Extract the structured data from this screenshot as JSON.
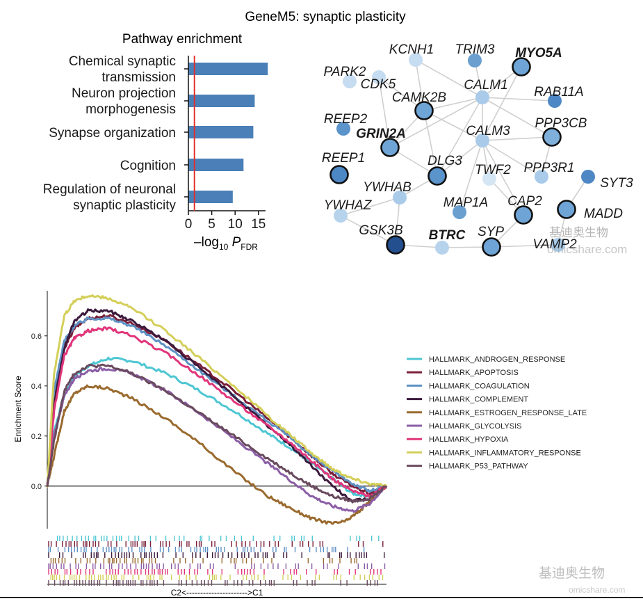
{
  "figure": {
    "title": "GeneM5: synaptic plasticity",
    "watermark_lines": [
      "基迪奥生物",
      "omicshare.com"
    ]
  },
  "chart_data": [
    {
      "type": "bar",
      "orientation": "horizontal",
      "title": "Pathway enrichment",
      "xlabel": "–log10 PFDR",
      "xlabel_parts": {
        "prefix": "–log",
        "sub1": "10",
        "var": " P",
        "sub2": "FDR"
      },
      "categories": [
        "Chemical synaptic\ntransmission",
        "Neuron projection\nmorphogenesis",
        "Synapse organization",
        "Cognition",
        "Regulation of neuronal\nsynaptic plasticity"
      ],
      "values": [
        17.0,
        14.2,
        13.9,
        11.8,
        9.5
      ],
      "xticks": [
        0,
        5,
        10,
        15
      ],
      "xlim": [
        0,
        18
      ],
      "threshold": 1.3,
      "bar_color": "#4a7fb8",
      "threshold_color": "#e0302a"
    },
    {
      "type": "network",
      "nodes": [
        {
          "id": "KCNH1",
          "bold": false,
          "ring": false,
          "color": "#c6dcf0"
        },
        {
          "id": "TRIM3",
          "bold": false,
          "ring": false,
          "color": "#6a9fd0"
        },
        {
          "id": "MYO5A",
          "bold": true,
          "ring": true,
          "color": "#6fa5d6"
        },
        {
          "id": "PARK2",
          "bold": false,
          "ring": false,
          "color": "#c6dcf0"
        },
        {
          "id": "CDK5",
          "bold": false,
          "ring": false,
          "color": "#c6dcf0"
        },
        {
          "id": "CALM1",
          "bold": false,
          "ring": false,
          "color": "#a9cbe9"
        },
        {
          "id": "CAMK2B",
          "bold": false,
          "ring": true,
          "color": "#6fa5d6"
        },
        {
          "id": "RAB11A",
          "bold": false,
          "ring": false,
          "color": "#4d87c4"
        },
        {
          "id": "REEP2",
          "bold": false,
          "ring": false,
          "color": "#5b93cb"
        },
        {
          "id": "GRIN2A",
          "bold": true,
          "ring": true,
          "color": "#6fa5d6"
        },
        {
          "id": "CALM3",
          "bold": false,
          "ring": false,
          "color": "#a9cbe9"
        },
        {
          "id": "PPP3CB",
          "bold": false,
          "ring": true,
          "color": "#7fb0dc"
        },
        {
          "id": "REEP1",
          "bold": false,
          "ring": true,
          "color": "#4d87c4"
        },
        {
          "id": "DLG3",
          "bold": false,
          "ring": true,
          "color": "#5b93cb"
        },
        {
          "id": "TWF2",
          "bold": false,
          "ring": false,
          "color": "#d4e5f4"
        },
        {
          "id": "PPP3R1",
          "bold": false,
          "ring": false,
          "color": "#a9cbe9"
        },
        {
          "id": "SYT3",
          "bold": false,
          "ring": false,
          "color": "#4d87c4"
        },
        {
          "id": "YWHAB",
          "bold": false,
          "ring": false,
          "color": "#a9cbe9"
        },
        {
          "id": "MAP1A",
          "bold": false,
          "ring": false,
          "color": "#6a9fd0"
        },
        {
          "id": "CAP2",
          "bold": false,
          "ring": true,
          "color": "#6fa5d6"
        },
        {
          "id": "MADD",
          "bold": false,
          "ring": true,
          "color": "#6fa5d6"
        },
        {
          "id": "YWHAZ",
          "bold": false,
          "ring": false,
          "color": "#b7d3ec"
        },
        {
          "id": "GSK3B",
          "bold": false,
          "ring": true,
          "color": "#234f8f"
        },
        {
          "id": "BTRC",
          "bold": true,
          "ring": false,
          "color": "#b7d3ec"
        },
        {
          "id": "SYP",
          "bold": false,
          "ring": true,
          "color": "#6fa5d6"
        },
        {
          "id": "VAMP2",
          "bold": false,
          "ring": false,
          "color": "#a9cbe9"
        }
      ],
      "edges": [
        [
          "KCNH1",
          "CALM1"
        ],
        [
          "KCNH1",
          "CAMK2B"
        ],
        [
          "TRIM3",
          "CALM1"
        ],
        [
          "MYO5A",
          "CALM1"
        ],
        [
          "MYO5A",
          "CALM3"
        ],
        [
          "CALM1",
          "CALM3"
        ],
        [
          "CALM1",
          "CAMK2B"
        ],
        [
          "CALM1",
          "PPP3CB"
        ],
        [
          "CALM1",
          "RAB11A"
        ],
        [
          "CALM1",
          "DLG3"
        ],
        [
          "CALM3",
          "CAMK2B"
        ],
        [
          "CALM3",
          "PPP3CB"
        ],
        [
          "CALM3",
          "PPP3R1"
        ],
        [
          "CALM3",
          "DLG3"
        ],
        [
          "CALM3",
          "TWF2"
        ],
        [
          "CALM3",
          "CAP2"
        ],
        [
          "CAMK2B",
          "GRIN2A"
        ],
        [
          "CAMK2B",
          "DLG3"
        ],
        [
          "CDK5",
          "CAMK2B"
        ],
        [
          "CDK5",
          "GRIN2A"
        ],
        [
          "GRIN2A",
          "DLG3"
        ],
        [
          "DLG3",
          "YWHAB"
        ],
        [
          "YWHAB",
          "YWHAZ"
        ],
        [
          "YWHAZ",
          "GSK3B"
        ],
        [
          "GSK3B",
          "BTRC"
        ],
        [
          "BTRC",
          "SYP"
        ],
        [
          "SYP",
          "CAP2"
        ],
        [
          "SYP",
          "VAMP2"
        ],
        [
          "VAMP2",
          "MADD"
        ],
        [
          "MADD",
          "SYT3"
        ],
        [
          "CAP2",
          "TWF2"
        ],
        [
          "PPP3CB",
          "PPP3R1"
        ],
        [
          "MAP1A",
          "CALM3"
        ],
        [
          "YWHAB",
          "GSK3B"
        ],
        [
          "CALM1",
          "GRIN2A"
        ]
      ]
    },
    {
      "type": "line",
      "ylabel": "Enrichment Score",
      "xlabel": "C2<---------------------->C1",
      "ylim": [
        -0.17,
        0.78
      ],
      "yticks": [
        0.0,
        0.2,
        0.4,
        0.6
      ],
      "ytick_labels": [
        "0.0",
        "0.2",
        "0.4",
        "0.6"
      ],
      "x_range": [
        0,
        1
      ],
      "legend_position": "right",
      "series": [
        {
          "name": "HALLMARK_ANDROGEN_RESPONSE",
          "color": "#4ec6d3",
          "x": [
            0,
            0.02,
            0.05,
            0.08,
            0.12,
            0.18,
            0.25,
            0.35,
            0.45,
            0.55,
            0.65,
            0.72,
            0.78,
            0.84,
            0.9,
            0.95,
            1.0
          ],
          "y": [
            0.0,
            0.22,
            0.36,
            0.44,
            0.48,
            0.51,
            0.5,
            0.45,
            0.38,
            0.3,
            0.21,
            0.15,
            0.09,
            0.03,
            -0.03,
            -0.04,
            0.0
          ]
        },
        {
          "name": "HALLMARK_APOPTOSIS",
          "color": "#7a1f3a",
          "x": [
            0,
            0.02,
            0.05,
            0.08,
            0.12,
            0.18,
            0.25,
            0.35,
            0.45,
            0.55,
            0.65,
            0.72,
            0.78,
            0.84,
            0.9,
            0.95,
            1.0
          ],
          "y": [
            0.0,
            0.34,
            0.55,
            0.63,
            0.67,
            0.68,
            0.65,
            0.58,
            0.48,
            0.38,
            0.27,
            0.19,
            0.12,
            0.05,
            0.0,
            -0.03,
            0.0
          ]
        },
        {
          "name": "HALLMARK_COAGULATION",
          "color": "#5e92c4",
          "x": [
            0,
            0.02,
            0.05,
            0.08,
            0.12,
            0.18,
            0.25,
            0.35,
            0.45,
            0.55,
            0.65,
            0.72,
            0.78,
            0.84,
            0.9,
            0.95,
            1.0
          ],
          "y": [
            0.0,
            0.38,
            0.58,
            0.64,
            0.67,
            0.67,
            0.64,
            0.56,
            0.46,
            0.36,
            0.26,
            0.19,
            0.12,
            0.06,
            0.01,
            -0.02,
            0.0
          ]
        },
        {
          "name": "HALLMARK_COMPLEMENT",
          "color": "#3c1a3c",
          "x": [
            0,
            0.02,
            0.05,
            0.08,
            0.12,
            0.18,
            0.25,
            0.35,
            0.45,
            0.55,
            0.65,
            0.72,
            0.78,
            0.84,
            0.9,
            0.95,
            1.0
          ],
          "y": [
            0.0,
            0.32,
            0.55,
            0.66,
            0.7,
            0.7,
            0.66,
            0.58,
            0.47,
            0.36,
            0.24,
            0.16,
            0.08,
            0.0,
            -0.06,
            -0.05,
            0.0
          ]
        },
        {
          "name": "HALLMARK_ESTROGEN_RESPONSE_LATE",
          "color": "#9a6a2e",
          "x": [
            0,
            0.02,
            0.05,
            0.08,
            0.12,
            0.18,
            0.25,
            0.35,
            0.45,
            0.55,
            0.65,
            0.72,
            0.78,
            0.84,
            0.88,
            0.92,
            0.96,
            1.0
          ],
          "y": [
            0.0,
            0.12,
            0.3,
            0.37,
            0.4,
            0.39,
            0.35,
            0.27,
            0.17,
            0.06,
            -0.04,
            -0.09,
            -0.13,
            -0.15,
            -0.14,
            -0.1,
            -0.05,
            0.0
          ]
        },
        {
          "name": "HALLMARK_GLYCOLYSIS",
          "color": "#8b5ea6",
          "x": [
            0,
            0.02,
            0.05,
            0.08,
            0.12,
            0.18,
            0.25,
            0.35,
            0.45,
            0.55,
            0.65,
            0.72,
            0.78,
            0.84,
            0.9,
            0.95,
            1.0
          ],
          "y": [
            0.0,
            0.2,
            0.36,
            0.43,
            0.46,
            0.47,
            0.45,
            0.38,
            0.29,
            0.19,
            0.09,
            0.02,
            -0.04,
            -0.08,
            -0.1,
            -0.07,
            0.0
          ]
        },
        {
          "name": "HALLMARK_HYPOXIA",
          "color": "#e0357a",
          "x": [
            0,
            0.02,
            0.05,
            0.08,
            0.12,
            0.18,
            0.25,
            0.35,
            0.45,
            0.55,
            0.65,
            0.72,
            0.78,
            0.84,
            0.9,
            0.95,
            1.0
          ],
          "y": [
            0.0,
            0.3,
            0.52,
            0.59,
            0.62,
            0.63,
            0.6,
            0.53,
            0.44,
            0.34,
            0.24,
            0.17,
            0.1,
            0.03,
            -0.02,
            -0.04,
            0.0
          ]
        },
        {
          "name": "HALLMARK_INFLAMMATORY_RESPONSE",
          "color": "#d4cf5a",
          "x": [
            0,
            0.02,
            0.05,
            0.08,
            0.12,
            0.18,
            0.25,
            0.35,
            0.45,
            0.55,
            0.65,
            0.72,
            0.78,
            0.84,
            0.9,
            0.95,
            1.0
          ],
          "y": [
            0.0,
            0.45,
            0.68,
            0.74,
            0.76,
            0.75,
            0.71,
            0.62,
            0.51,
            0.4,
            0.28,
            0.2,
            0.13,
            0.07,
            0.03,
            0.01,
            0.0
          ]
        },
        {
          "name": "HALLMARK_P53_PATHWAY",
          "color": "#6a4a5e",
          "x": [
            0,
            0.02,
            0.05,
            0.08,
            0.12,
            0.18,
            0.25,
            0.35,
            0.45,
            0.55,
            0.65,
            0.72,
            0.78,
            0.84,
            0.9,
            0.95,
            1.0
          ],
          "y": [
            0.0,
            0.18,
            0.38,
            0.45,
            0.48,
            0.48,
            0.45,
            0.38,
            0.29,
            0.2,
            0.11,
            0.05,
            0.0,
            -0.04,
            -0.06,
            -0.05,
            0.0
          ]
        }
      ]
    }
  ]
}
